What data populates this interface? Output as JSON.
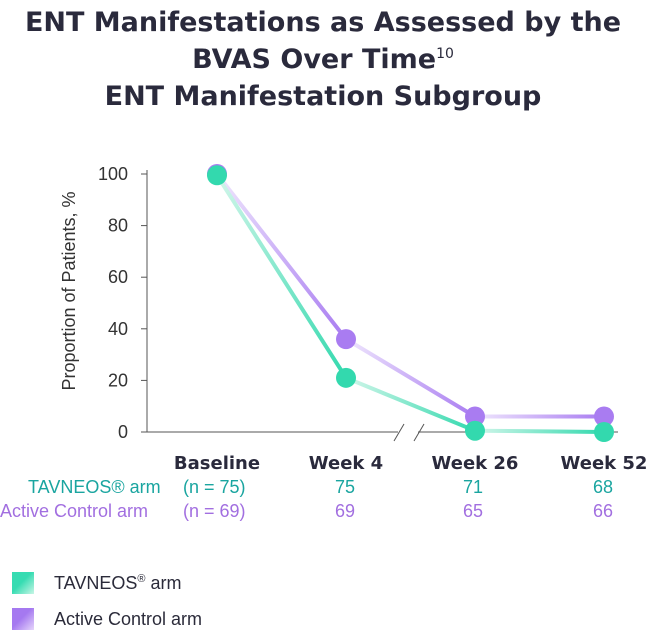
{
  "title": {
    "line1": "ENT Manifestations as Assessed by the",
    "line2": "BVAS Over Time",
    "line2_sup": "10",
    "line3": "ENT Manifestation Subgroup"
  },
  "colors": {
    "tavneos": "#33d9ae",
    "active_control": "#a97cf1",
    "tavneos_text": "#1aa5a0",
    "active_control_text": "#a26fe0"
  },
  "chart_data": {
    "type": "line",
    "ylabel": "Proportion of Patients, %",
    "xlabel": "",
    "ylim": [
      0,
      100
    ],
    "yticks": [
      0,
      20,
      40,
      60,
      80,
      100
    ],
    "categories": [
      "Baseline",
      "Week 4",
      "Week 26",
      "Week 52"
    ],
    "axis_break_between": [
      "Week 4",
      "Week 26"
    ],
    "series": [
      {
        "name": "TAVNEOS® arm",
        "values": [
          99.5,
          21,
          0.5,
          0
        ],
        "n": [
          "(n = 75)",
          "75",
          "71",
          "68"
        ]
      },
      {
        "name": "Active Control arm",
        "values": [
          100,
          36,
          6,
          6
        ],
        "n": [
          "(n = 69)",
          "69",
          "65",
          "66"
        ]
      }
    ]
  },
  "n_table": {
    "tavneos_label": "TAVNEOS® arm",
    "active_label": "Active Control arm"
  },
  "legend": {
    "tavneos": "TAVNEOS",
    "tavneos_sup": "®",
    "tavneos_suffix": " arm",
    "active": "Active Control arm"
  }
}
